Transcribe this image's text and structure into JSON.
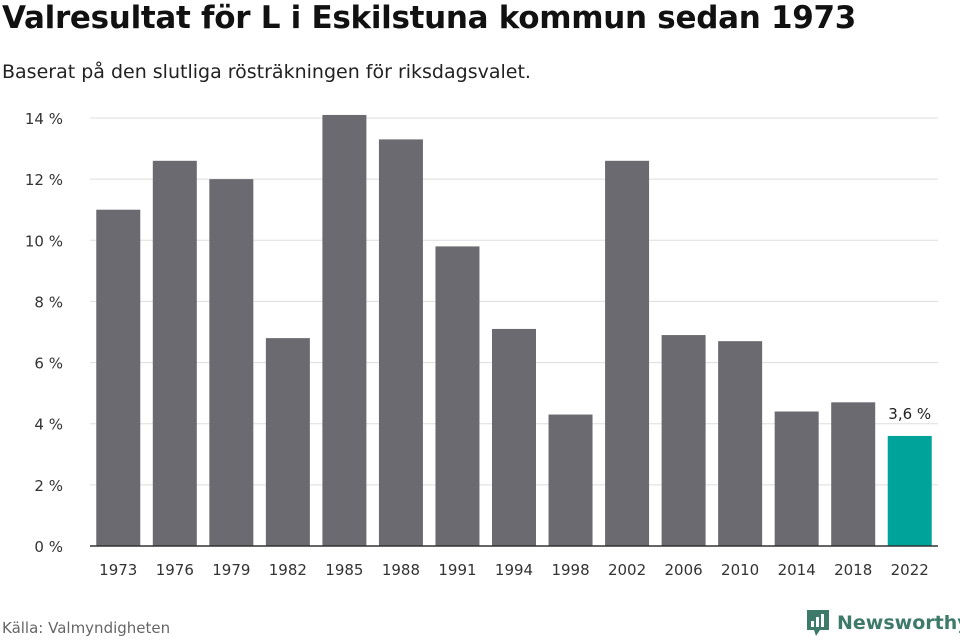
{
  "title": "Valresultat för L i Eskilstuna kommun sedan 1973",
  "subtitle": "Baserat på den slutliga rösträkningen för riksdagsvalet.",
  "source": "Källa: Valmyndigheten",
  "brand": {
    "name": "Newsworthy",
    "logo_icon": "newsworthy-logo-icon"
  },
  "colors": {
    "bar": "#6b6a70",
    "highlight": "#00a39a",
    "grid": "#dddddd",
    "axis": "#333333",
    "brand": "#3d7a6a"
  },
  "chart_data": {
    "type": "bar",
    "categories": [
      "1973",
      "1976",
      "1979",
      "1982",
      "1985",
      "1988",
      "1991",
      "1994",
      "1998",
      "2002",
      "2006",
      "2010",
      "2014",
      "2018",
      "2022"
    ],
    "values": [
      11.0,
      12.6,
      12.0,
      6.8,
      14.1,
      13.3,
      9.8,
      7.1,
      4.3,
      12.6,
      6.9,
      6.7,
      4.4,
      4.7,
      3.6
    ],
    "y_ticks": [
      0,
      2,
      4,
      6,
      8,
      10,
      12,
      14
    ],
    "y_tick_labels": [
      "0 %",
      "2 %",
      "4 %",
      "6 %",
      "8 %",
      "10 %",
      "12 %",
      "14 %"
    ],
    "ylim": [
      0,
      14
    ],
    "grid": true,
    "highlight_index": 14,
    "highlight_label": "3,6 %",
    "xlabel": "",
    "ylabel": ""
  }
}
